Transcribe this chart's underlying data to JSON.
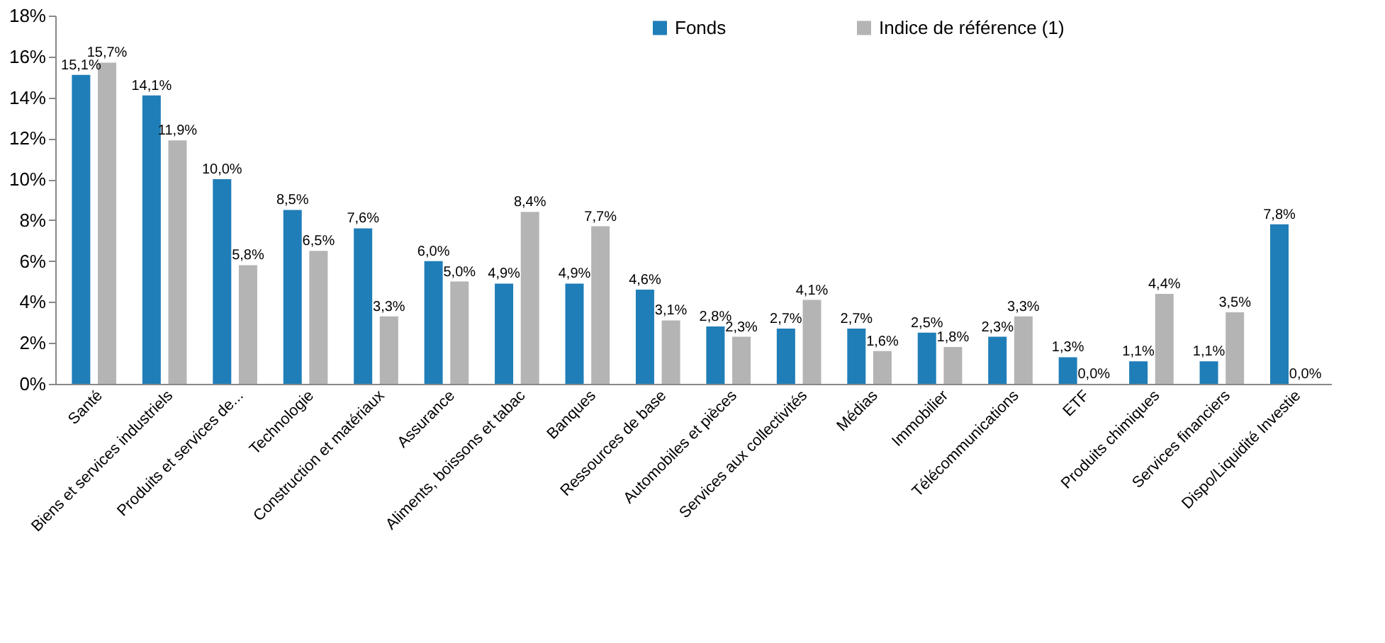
{
  "chart_data": {
    "type": "bar",
    "categories": [
      "Santé",
      "Biens et services industriels",
      "Produits et services de...",
      "Technologie",
      "Construction et matériaux",
      "Assurance",
      "Aliments, boissons et tabac",
      "Banques",
      "Ressources de base",
      "Automobiles et pièces",
      "Services aux collectivités",
      "Médias",
      "Immobilier",
      "Télécommunications",
      "ETF",
      "Produits chimiques",
      "Services financiers",
      "Dispo/Liquidité Investie"
    ],
    "series": [
      {
        "name": "Fonds",
        "color": "#1f7eb8",
        "values": [
          15.1,
          14.1,
          10.0,
          8.5,
          7.6,
          6.0,
          4.9,
          4.9,
          4.6,
          2.8,
          2.7,
          2.7,
          2.5,
          2.3,
          1.3,
          1.1,
          1.1,
          7.8
        ],
        "value_labels": [
          "15,1%",
          "14,1%",
          "10,0%",
          "8,5%",
          "7,6%",
          "6,0%",
          "4,9%",
          "4,9%",
          "4,6%",
          "2,8%",
          "2,7%",
          "2,7%",
          "2,5%",
          "2,3%",
          "1,3%",
          "1,1%",
          "1,1%",
          "7,8%"
        ]
      },
      {
        "name": "Indice de référence (1)",
        "color": "#b4b4b4",
        "values": [
          15.7,
          11.9,
          5.8,
          6.5,
          3.3,
          5.0,
          8.4,
          7.7,
          3.1,
          2.3,
          4.1,
          1.6,
          1.8,
          3.3,
          0.0,
          4.4,
          3.5,
          0.0
        ],
        "value_labels": [
          "15,7%",
          "11,9%",
          "5,8%",
          "6,5%",
          "3,3%",
          "5,0%",
          "8,4%",
          "7,7%",
          "3,1%",
          "2,3%",
          "4,1%",
          "1,6%",
          "1,8%",
          "3,3%",
          "0,0%",
          "4,4%",
          "3,5%",
          "0,0%"
        ]
      }
    ],
    "ylim": [
      0,
      18
    ],
    "yticks": [
      {
        "value": 0,
        "label": "0%"
      },
      {
        "value": 2,
        "label": "2%"
      },
      {
        "value": 4,
        "label": "4%"
      },
      {
        "value": 6,
        "label": "6%"
      },
      {
        "value": 8,
        "label": "8%"
      },
      {
        "value": 10,
        "label": "10%"
      },
      {
        "value": 12,
        "label": "12%"
      },
      {
        "value": 14,
        "label": "14%"
      },
      {
        "value": 16,
        "label": "16%"
      },
      {
        "value": 18,
        "label": "18%"
      }
    ],
    "grid": false,
    "legend": "top"
  }
}
